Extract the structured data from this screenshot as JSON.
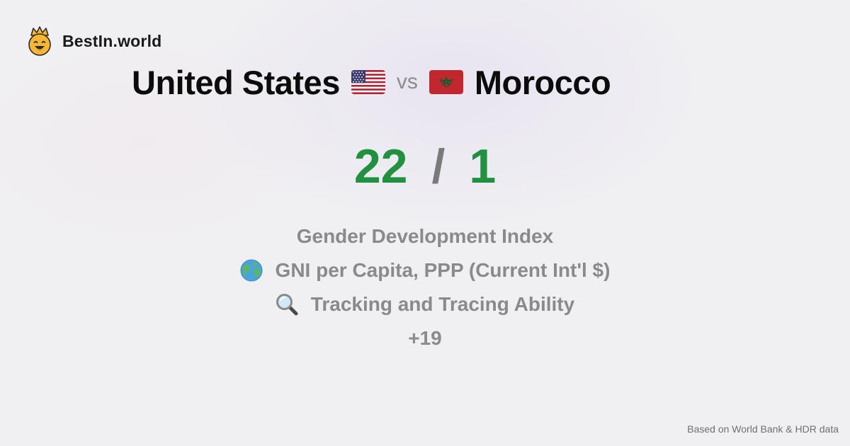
{
  "brand": {
    "name": "BestIn.world",
    "icon": "crowned-smiley-icon"
  },
  "comparison": {
    "left_country": "United States",
    "left_flag": "us-flag-icon",
    "vs_label": "vs",
    "right_country": "Morocco",
    "right_flag": "morocco-flag-icon"
  },
  "score": {
    "left": "22",
    "separator": "/",
    "right": "1",
    "color": "#20913f"
  },
  "metrics": [
    {
      "icon": "",
      "label": "Gender Development Index"
    },
    {
      "icon": "globe-icon",
      "label": "GNI per Capita, PPP (Current Int'l $)"
    },
    {
      "icon": "magnifier-icon",
      "label": "Tracking and Tracing Ability"
    }
  ],
  "more_count": "+19",
  "footer": {
    "source": "Based on World Bank & HDR data"
  }
}
